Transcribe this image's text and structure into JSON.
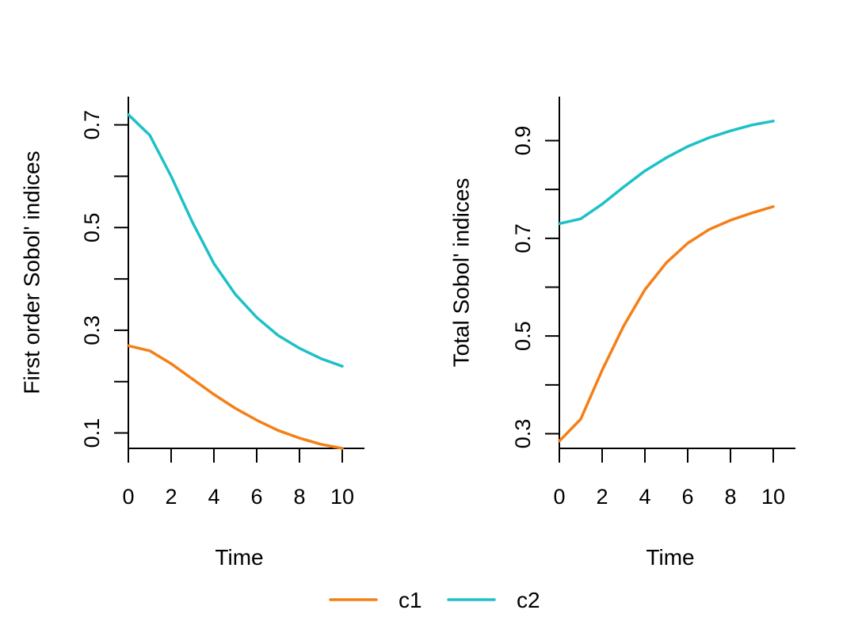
{
  "chart_data": [
    {
      "type": "line",
      "xlabel": "Time",
      "ylabel": "First order Sobol' indices",
      "xlim": [
        0,
        11
      ],
      "ylim": [
        0.07,
        0.755
      ],
      "xticks": [
        0,
        2,
        4,
        6,
        8,
        10
      ],
      "yticks": [
        0.1,
        0.2,
        0.3,
        0.4,
        0.5,
        0.6,
        0.7
      ],
      "ytick_labels": [
        "0.1",
        "",
        "0.3",
        "",
        "0.5",
        "",
        "0.7"
      ],
      "x": [
        0,
        1,
        2,
        3,
        4,
        5,
        6,
        7,
        8,
        9,
        10
      ],
      "series": [
        {
          "name": "c1",
          "color": "#F57F17",
          "values": [
            0.27,
            0.26,
            0.235,
            0.205,
            0.175,
            0.148,
            0.125,
            0.105,
            0.09,
            0.078,
            0.07
          ]
        },
        {
          "name": "c2",
          "color": "#1EC0C8",
          "values": [
            0.72,
            0.68,
            0.6,
            0.51,
            0.43,
            0.37,
            0.325,
            0.29,
            0.265,
            0.245,
            0.23
          ]
        }
      ]
    },
    {
      "type": "line",
      "xlabel": "Time",
      "ylabel": "Total Sobol' indices",
      "xlim": [
        0,
        11
      ],
      "ylim": [
        0.27,
        0.99
      ],
      "xticks": [
        0,
        2,
        4,
        6,
        8,
        10
      ],
      "yticks": [
        0.3,
        0.4,
        0.5,
        0.6,
        0.7,
        0.8,
        0.9
      ],
      "ytick_labels": [
        "0.3",
        "",
        "0.5",
        "",
        "0.7",
        "",
        "0.9"
      ],
      "x": [
        0,
        1,
        2,
        3,
        4,
        5,
        6,
        7,
        8,
        9,
        10
      ],
      "series": [
        {
          "name": "c1",
          "color": "#F57F17",
          "values": [
            0.285,
            0.33,
            0.43,
            0.52,
            0.595,
            0.65,
            0.69,
            0.718,
            0.737,
            0.752,
            0.765
          ]
        },
        {
          "name": "c2",
          "color": "#1EC0C8",
          "values": [
            0.73,
            0.74,
            0.77,
            0.805,
            0.838,
            0.865,
            0.888,
            0.906,
            0.92,
            0.932,
            0.94
          ]
        }
      ]
    }
  ],
  "legend": {
    "placement": "bottom",
    "items": [
      {
        "label": "c1",
        "color": "#F57F17"
      },
      {
        "label": "c2",
        "color": "#1EC0C8"
      }
    ]
  }
}
